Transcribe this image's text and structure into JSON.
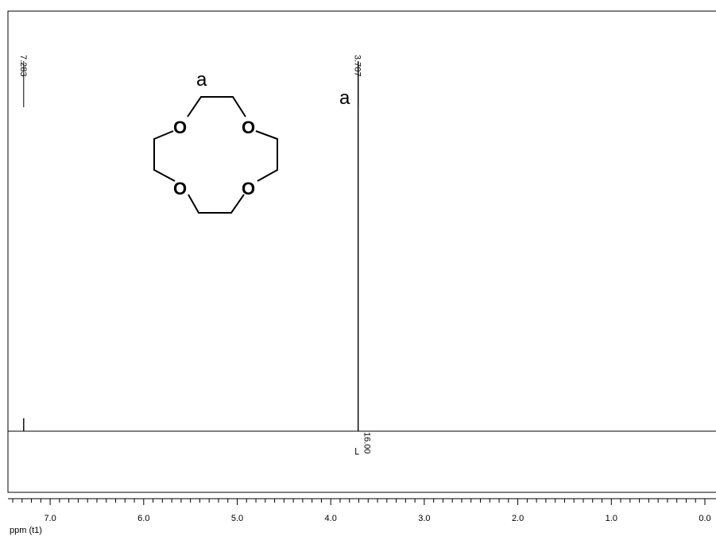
{
  "chart_data": {
    "type": "line",
    "title": "",
    "xlabel": "ppm (t1)",
    "ylabel": "",
    "x_reversed": true,
    "xlim": [
      7.55,
      0.0
    ],
    "x_ticks": [
      {
        "value": 7.0,
        "label": "7.0"
      },
      {
        "value": 6.0,
        "label": "6.0"
      },
      {
        "value": 5.0,
        "label": "5.0"
      },
      {
        "value": 4.0,
        "label": "4.0"
      },
      {
        "value": 3.0,
        "label": "3.0"
      },
      {
        "value": 2.0,
        "label": "2.0"
      },
      {
        "value": 1.0,
        "label": "1.0"
      },
      {
        "value": 0.0,
        "label": "0.0"
      }
    ],
    "grid": false,
    "baseline": 0,
    "peaks": [
      {
        "ppm": 7.283,
        "label": "7.283",
        "height": 0.035
      },
      {
        "ppm": 3.707,
        "label": "3.707",
        "height": 1.0,
        "assignment": "a"
      }
    ],
    "integrals": [
      {
        "ppm": 3.707,
        "label": "16.00"
      }
    ],
    "structure": {
      "label": "a",
      "atoms": [
        "O",
        "O",
        "O",
        "O"
      ]
    }
  }
}
